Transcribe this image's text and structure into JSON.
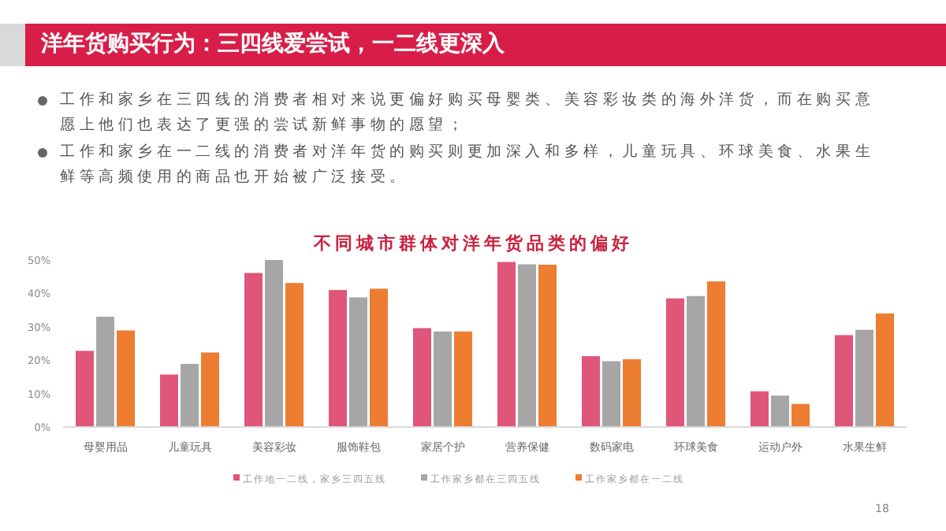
{
  "chart_data": {
    "type": "bar",
    "title": "不同城市群体对洋年货品类的偏好",
    "annotations": [
      "洋年货购买行为：三四线爱尝试，一二线更深入",
      "工作和家乡在三四线的消费者相对来说更偏好购买母婴类、美容彩妆类的海外洋货，而在购买意愿上他们也表达了更强的尝试新鲜事物的愿望；",
      "工作和家乡在一二线的消费者对洋年货的购买则更加深入和多样，儿童玩具、环球美食、水果生鲜等高频使用的商品也开始被广泛接受。",
      "18"
    ],
    "categories": [
      "母婴用品",
      "儿童玩具",
      "美容彩妆",
      "服饰鞋包",
      "家居个护",
      "营养保健",
      "数码家电",
      "环球美食",
      "运动户外",
      "水果生鲜"
    ],
    "series": [
      {
        "name": "工作地一二线，家乡三四五线",
        "color": "#e0557a",
        "values": [
          22.8,
          15.7,
          46.1,
          41.0,
          29.6,
          49.4,
          21.2,
          38.5,
          10.7,
          27.5
        ]
      },
      {
        "name": "工作家乡都在三四五线",
        "color": "#a6a6a6",
        "values": [
          33.0,
          18.9,
          50.0,
          38.8,
          28.6,
          48.7,
          19.7,
          39.2,
          9.4,
          29.1
        ]
      },
      {
        "name": "工作家乡都在一二线",
        "color": "#ed7d31",
        "values": [
          28.9,
          22.3,
          43.1,
          41.4,
          28.6,
          48.6,
          20.3,
          43.6,
          6.9,
          34.0
        ]
      }
    ],
    "ylim": [
      0,
      50
    ],
    "yticks": [
      {
        "value": 0,
        "label": "0%"
      },
      {
        "value": 10,
        "label": "10%"
      },
      {
        "value": 20,
        "label": "20%"
      },
      {
        "value": 30,
        "label": "30%"
      },
      {
        "value": 40,
        "label": "40%"
      },
      {
        "value": 50,
        "label": "50%"
      }
    ],
    "grid": false,
    "legend": "bottom"
  }
}
